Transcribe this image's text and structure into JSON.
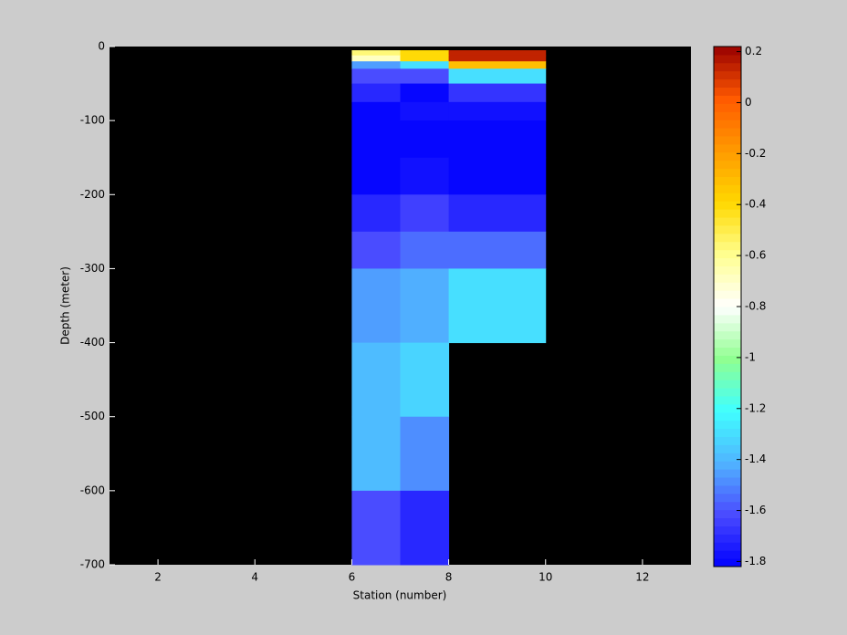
{
  "chart_data": {
    "type": "heatmap",
    "xlabel": "Station (number)",
    "ylabel": "Depth (meter)",
    "xlim": [
      1,
      13
    ],
    "xticks": [
      2,
      4,
      6,
      8,
      10,
      12
    ],
    "ylim": [
      -700,
      0
    ],
    "yticks": [
      -700,
      -600,
      -500,
      -400,
      -300,
      -200,
      -100,
      0
    ],
    "x_edges": [
      6,
      7,
      8,
      10
    ],
    "y_edges": [
      -5,
      -12,
      -20,
      -30,
      -50,
      -75,
      -100,
      -150,
      -200,
      -250,
      -300,
      -400,
      -500,
      -600,
      -700
    ],
    "values": [
      [
        -0.55,
        -0.4,
        0.15
      ],
      [
        -0.7,
        -0.4,
        0.15
      ],
      [
        -1.45,
        -1.3,
        -0.3
      ],
      [
        -1.6,
        -1.6,
        -1.3
      ],
      [
        -1.72,
        -1.8,
        -1.68
      ],
      [
        -1.8,
        -1.78,
        -1.78
      ],
      [
        -1.85,
        -1.85,
        -1.85
      ],
      [
        -1.8,
        -1.78,
        -1.82
      ],
      [
        -1.7,
        -1.66,
        -1.7
      ],
      [
        -1.6,
        -1.55,
        -1.55
      ],
      [
        -1.45,
        -1.43,
        -1.3
      ],
      [
        -1.38,
        -1.33,
        null
      ],
      [
        -1.38,
        -1.5,
        null
      ],
      [
        -1.6,
        -1.7,
        null
      ]
    ],
    "clim": [
      -1.82,
      0.22
    ],
    "cticks": [
      -1.8,
      -1.6,
      -1.4,
      -1.2,
      -1,
      -0.8,
      -0.6,
      -0.4,
      -0.2,
      0,
      0.2
    ],
    "colormap": [
      "#0000ff",
      "#4a4aff",
      "#50b4ff",
      "#40ffff",
      "#90ff90",
      "#ffffff",
      "#ffff90",
      "#ffd800",
      "#ff9a00",
      "#ff5a00",
      "#990000"
    ],
    "colormap_levels": 64,
    "nan_color": "#000000"
  }
}
